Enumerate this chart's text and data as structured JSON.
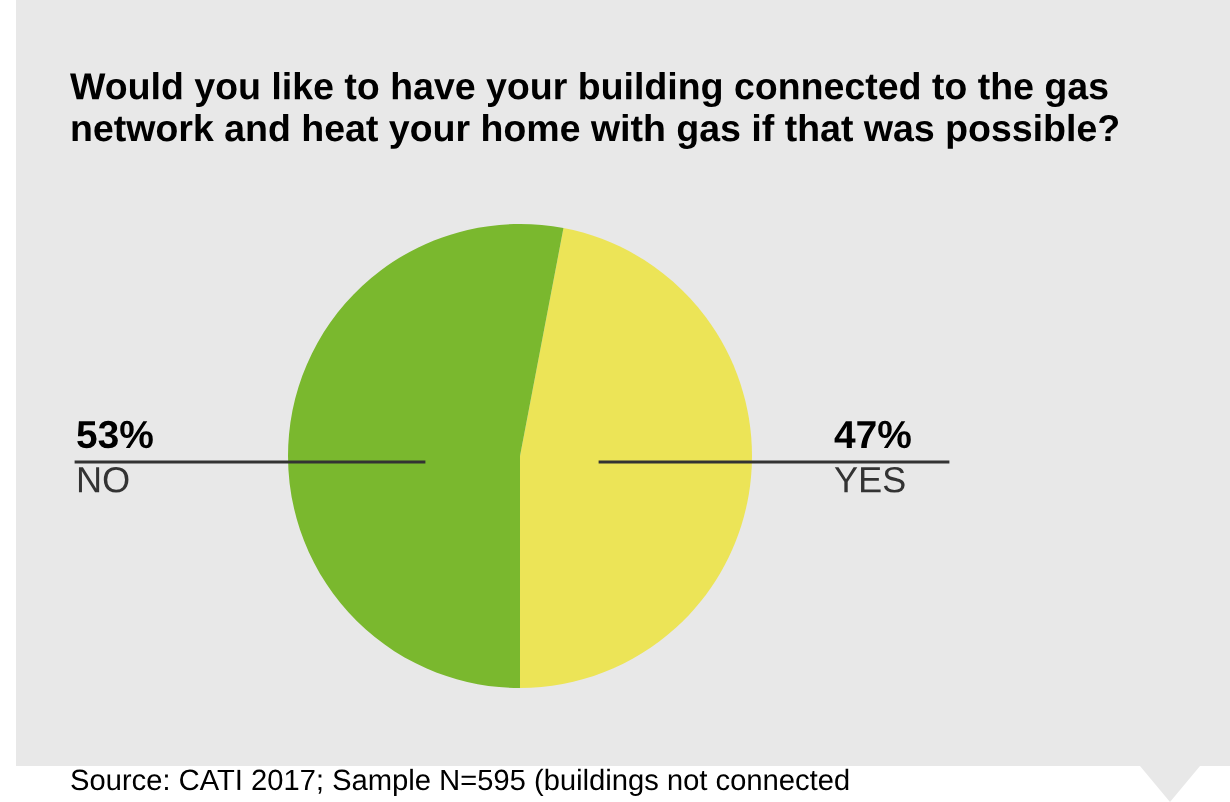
{
  "chart_data": {
    "type": "pie",
    "title": "Would you like to have your building connected to the gas\nnetwork and heat your home with gas if that was possible?",
    "categories": [
      "YES",
      "NO"
    ],
    "values": [
      47,
      53
    ],
    "colors": [
      "#ece457",
      "#7ab82e"
    ],
    "value_labels": [
      "47%",
      "53%"
    ],
    "annotations": [
      "Source: CATI 2017; Sample N=595 (buildings not connected"
    ]
  }
}
